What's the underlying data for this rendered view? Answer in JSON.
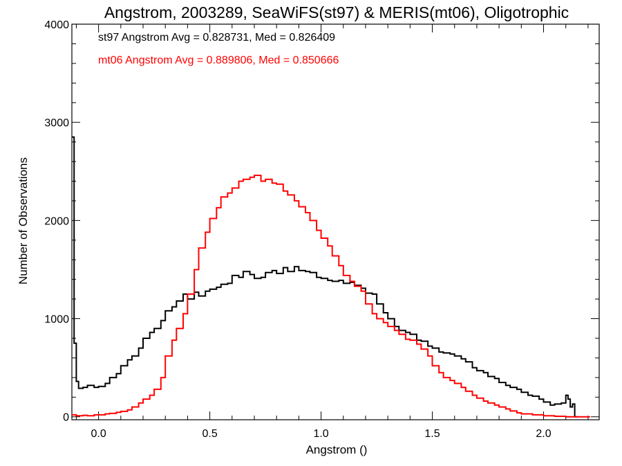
{
  "chart_data": {
    "type": "line",
    "title": "Angstrom, 2003289, SeaWiFS(st97) & MERIS(mt06), Oligotrophic",
    "xlabel": "Angstrom ()",
    "ylabel": "Number of Observations",
    "xlim": [
      -0.12,
      2.25
    ],
    "ylim": [
      -30,
      4000
    ],
    "x_ticks": [
      0.0,
      0.5,
      1.0,
      1.5,
      2.0
    ],
    "x_tick_labels": [
      "0.0",
      "0.5",
      "1.0",
      "1.5",
      "2.0"
    ],
    "y_ticks": [
      0,
      1000,
      2000,
      3000,
      4000
    ],
    "y_tick_labels": [
      "0",
      "1000",
      "2000",
      "3000",
      "4000"
    ],
    "grid": false,
    "annotations": [
      {
        "text": "st97 Angstrom Avg = 0.828731, Med = 0.826409",
        "color": "#000000"
      },
      {
        "text": "mt06 Angstrom Avg = 0.889806, Med = 0.850666",
        "color": "#ff0000"
      }
    ],
    "series": [
      {
        "color": "#000000",
        "x": [
          -0.12,
          -0.11,
          -0.1,
          -0.09,
          -0.07,
          -0.05,
          -0.02,
          0.0,
          0.03,
          0.05,
          0.08,
          0.1,
          0.13,
          0.15,
          0.18,
          0.2,
          0.23,
          0.25,
          0.28,
          0.3,
          0.33,
          0.35,
          0.38,
          0.4,
          0.43,
          0.45,
          0.48,
          0.5,
          0.53,
          0.55,
          0.58,
          0.6,
          0.63,
          0.65,
          0.68,
          0.7,
          0.73,
          0.75,
          0.78,
          0.8,
          0.83,
          0.85,
          0.88,
          0.9,
          0.93,
          0.95,
          0.98,
          1.0,
          1.03,
          1.05,
          1.08,
          1.1,
          1.13,
          1.15,
          1.18,
          1.2,
          1.23,
          1.25,
          1.28,
          1.3,
          1.33,
          1.35,
          1.38,
          1.4,
          1.43,
          1.45,
          1.48,
          1.5,
          1.53,
          1.55,
          1.58,
          1.6,
          1.63,
          1.65,
          1.68,
          1.7,
          1.73,
          1.75,
          1.78,
          1.8,
          1.83,
          1.85,
          1.88,
          1.9,
          1.93,
          1.95,
          1.98,
          2.0,
          2.03,
          2.05,
          2.08,
          2.1,
          2.11,
          2.12,
          2.13,
          2.14,
          2.145
        ],
        "y": [
          2850,
          750,
          360,
          290,
          300,
          320,
          300,
          310,
          340,
          400,
          440,
          520,
          580,
          620,
          700,
          800,
          860,
          900,
          980,
          1080,
          1120,
          1180,
          1250,
          1200,
          1270,
          1230,
          1280,
          1300,
          1320,
          1350,
          1360,
          1440,
          1420,
          1480,
          1450,
          1410,
          1420,
          1470,
          1490,
          1460,
          1520,
          1480,
          1530,
          1490,
          1480,
          1470,
          1420,
          1410,
          1390,
          1380,
          1390,
          1360,
          1370,
          1340,
          1310,
          1260,
          1250,
          1150,
          1060,
          1000,
          920,
          880,
          860,
          840,
          780,
          770,
          720,
          700,
          660,
          650,
          640,
          620,
          590,
          560,
          500,
          470,
          450,
          410,
          390,
          350,
          320,
          300,
          280,
          250,
          220,
          210,
          180,
          150,
          120,
          130,
          140,
          220,
          180,
          100,
          130,
          0,
          0
        ]
      },
      {
        "color": "#ff0000",
        "x": [
          -0.12,
          -0.1,
          -0.07,
          -0.05,
          -0.02,
          0.0,
          0.03,
          0.05,
          0.08,
          0.1,
          0.13,
          0.15,
          0.18,
          0.2,
          0.23,
          0.25,
          0.28,
          0.3,
          0.33,
          0.35,
          0.38,
          0.4,
          0.43,
          0.45,
          0.48,
          0.5,
          0.53,
          0.55,
          0.58,
          0.6,
          0.63,
          0.65,
          0.68,
          0.7,
          0.73,
          0.75,
          0.78,
          0.8,
          0.83,
          0.85,
          0.88,
          0.9,
          0.93,
          0.95,
          0.98,
          1.0,
          1.03,
          1.05,
          1.08,
          1.1,
          1.13,
          1.15,
          1.18,
          1.2,
          1.23,
          1.25,
          1.28,
          1.3,
          1.33,
          1.35,
          1.38,
          1.4,
          1.43,
          1.45,
          1.48,
          1.5,
          1.53,
          1.55,
          1.58,
          1.6,
          1.63,
          1.65,
          1.68,
          1.7,
          1.73,
          1.75,
          1.78,
          1.8,
          1.83,
          1.85,
          1.88,
          1.9,
          1.95,
          2.0,
          2.05,
          2.1,
          2.15,
          2.2
        ],
        "y": [
          20,
          10,
          15,
          10,
          20,
          20,
          30,
          35,
          45,
          55,
          70,
          100,
          140,
          180,
          220,
          280,
          400,
          620,
          780,
          900,
          1050,
          1250,
          1500,
          1720,
          1880,
          2020,
          2130,
          2240,
          2280,
          2330,
          2400,
          2420,
          2440,
          2460,
          2400,
          2420,
          2380,
          2370,
          2300,
          2260,
          2200,
          2140,
          2080,
          2000,
          1900,
          1820,
          1740,
          1640,
          1540,
          1440,
          1380,
          1330,
          1280,
          1150,
          1050,
          1000,
          960,
          920,
          880,
          840,
          790,
          780,
          740,
          690,
          620,
          520,
          450,
          400,
          370,
          340,
          300,
          260,
          220,
          190,
          160,
          140,
          120,
          100,
          80,
          60,
          40,
          30,
          20,
          10,
          5,
          0,
          0,
          0
        ]
      }
    ]
  }
}
